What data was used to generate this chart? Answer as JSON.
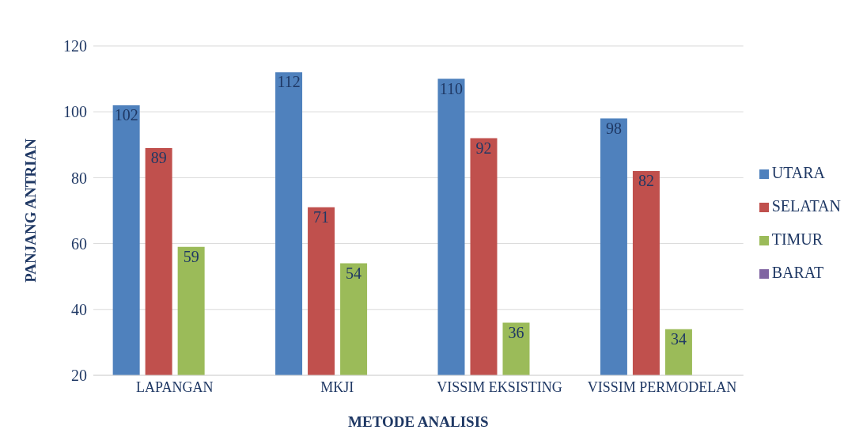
{
  "chart_data": {
    "type": "bar",
    "xlabel": "METODE ANALISIS",
    "ylabel": "PANJANG ANTRIAN",
    "categories": [
      "LAPANGAN",
      "MKJI",
      "VISSIM EKSISTING",
      "VISSIM PERMODELAN"
    ],
    "series": [
      {
        "name": "UTARA",
        "color": "#4f81bd",
        "values": [
          102,
          112,
          110,
          98
        ]
      },
      {
        "name": "SELATAN",
        "color": "#c0504d",
        "values": [
          89,
          71,
          92,
          82
        ]
      },
      {
        "name": "TIMUR",
        "color": "#9bbb59",
        "values": [
          59,
          54,
          36,
          34
        ]
      },
      {
        "name": "BARAT",
        "color": "#8064a2",
        "values": [
          null,
          null,
          null,
          null
        ]
      }
    ],
    "ylim": [
      20,
      120
    ],
    "yticks": [
      20,
      40,
      60,
      80,
      100,
      120
    ],
    "grid": "y",
    "legend": "right",
    "data_labels": true
  }
}
